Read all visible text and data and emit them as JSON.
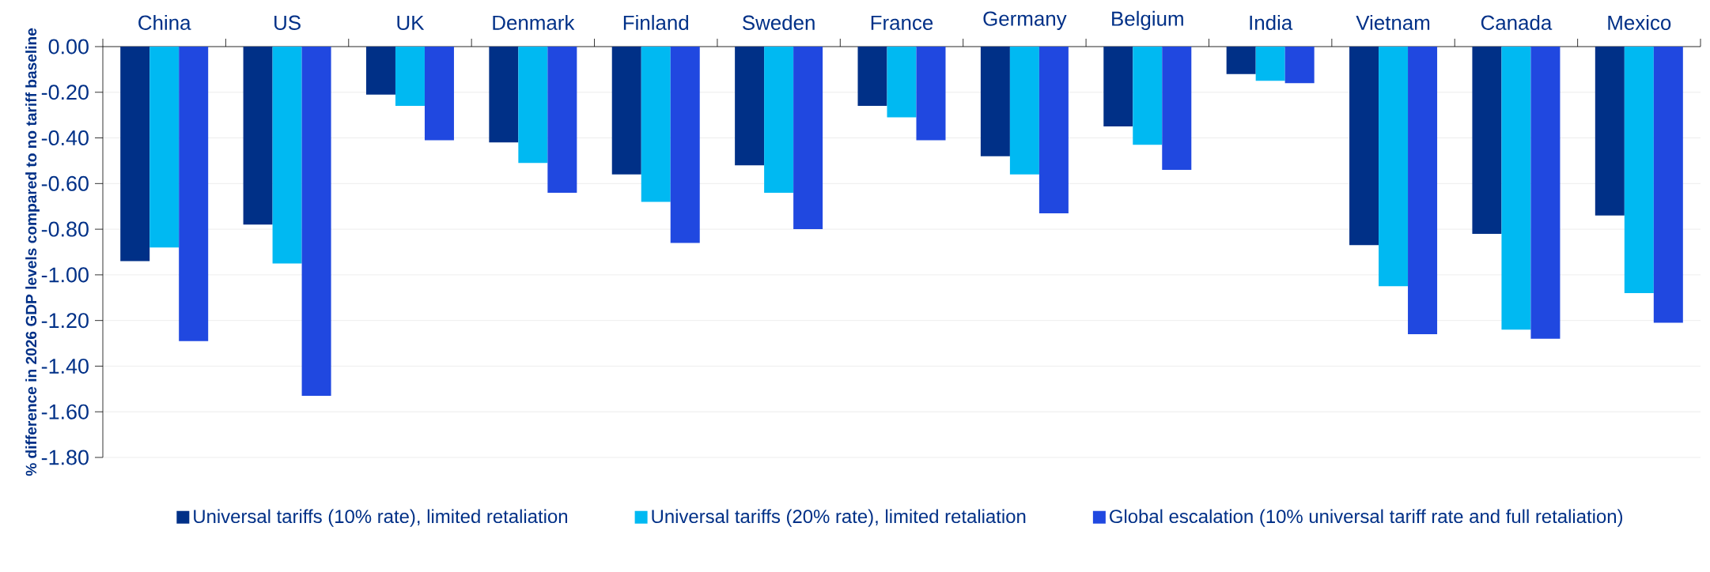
{
  "chart_data": {
    "type": "bar",
    "ylabel": "% difference in 2026 GDP levels compared to no tariff baseline",
    "categories": [
      "China",
      "US",
      "UK",
      "Denmark",
      "Finland",
      "Sweden",
      "France",
      "Germany",
      "Belgium",
      "India",
      "Vietnam",
      "Canada",
      "Mexico"
    ],
    "series": [
      {
        "name": "Universal tariffs (10% rate), limited retaliation",
        "color": "#003087",
        "values": [
          -0.94,
          -0.78,
          -0.21,
          -0.42,
          -0.56,
          -0.52,
          -0.26,
          -0.48,
          -0.35,
          -0.12,
          -0.87,
          -0.82,
          -0.74
        ]
      },
      {
        "name": "Universal tariffs (20% rate), limited retaliation",
        "color": "#00b9f2",
        "values": [
          -0.88,
          -0.95,
          -0.26,
          -0.51,
          -0.68,
          -0.64,
          -0.31,
          -0.56,
          -0.43,
          -0.15,
          -1.05,
          -1.24,
          -1.08
        ]
      },
      {
        "name": "Global escalation (10% universal tariff rate and full retaliation)",
        "color": "#2048e0",
        "values": [
          -1.29,
          -1.53,
          -0.41,
          -0.64,
          -0.86,
          -0.8,
          -0.41,
          -0.73,
          -0.54,
          -0.16,
          -1.26,
          -1.28,
          -1.21
        ]
      }
    ],
    "ylim": [
      -1.8,
      0
    ],
    "yticks": [
      {
        "value": 0,
        "label": "0.00"
      },
      {
        "value": -0.2,
        "label": "-0.20"
      },
      {
        "value": -0.4,
        "label": "-0.40"
      },
      {
        "value": -0.6,
        "label": "-0.60"
      },
      {
        "value": -0.8,
        "label": "-0.80"
      },
      {
        "value": -1.0,
        "label": "-1.00"
      },
      {
        "value": -1.2,
        "label": "-1.20"
      },
      {
        "value": -1.4,
        "label": "-1.40"
      },
      {
        "value": -1.6,
        "label": "-1.60"
      },
      {
        "value": -1.8,
        "label": "-1.80"
      }
    ],
    "grid": "y",
    "legend": "bottom"
  }
}
